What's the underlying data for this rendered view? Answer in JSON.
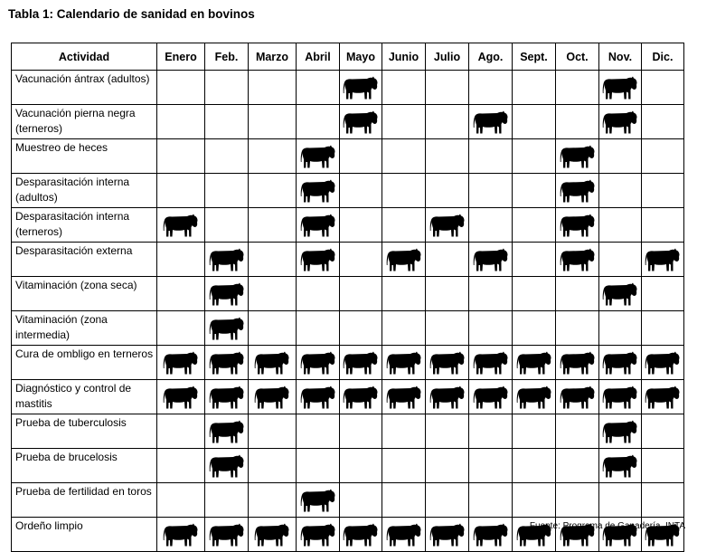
{
  "title": "Tabla 1: Calendario de sanidad en bovinos",
  "header": {
    "activity": "Actividad",
    "months": [
      "Enero",
      "Feb.",
      "Marzo",
      "Abril",
      "Mayo",
      "Junio",
      "Julio",
      "Ago.",
      "Sept.",
      "Oct.",
      "Nov.",
      "Dic."
    ]
  },
  "rows": [
    {
      "label": "Vacunación ántrax (adultos)",
      "months": [
        0,
        0,
        0,
        0,
        1,
        0,
        0,
        0,
        0,
        0,
        1,
        0
      ]
    },
    {
      "label": "Vacunación pierna negra (terneros)",
      "months": [
        0,
        0,
        0,
        0,
        1,
        0,
        0,
        1,
        0,
        0,
        1,
        0
      ]
    },
    {
      "label": "Muestreo de heces",
      "months": [
        0,
        0,
        0,
        1,
        0,
        0,
        0,
        0,
        0,
        1,
        0,
        0
      ]
    },
    {
      "label": "Desparasitación interna (adultos)",
      "months": [
        0,
        0,
        0,
        1,
        0,
        0,
        0,
        0,
        0,
        1,
        0,
        0
      ]
    },
    {
      "label": "Desparasitación interna (terneros)",
      "months": [
        1,
        0,
        0,
        1,
        0,
        0,
        1,
        0,
        0,
        1,
        0,
        0
      ]
    },
    {
      "label": "Desparasitación externa",
      "months": [
        0,
        1,
        0,
        1,
        0,
        1,
        0,
        1,
        0,
        1,
        0,
        1
      ]
    },
    {
      "label": "Vitaminación (zona seca)",
      "months": [
        0,
        1,
        0,
        0,
        0,
        0,
        0,
        0,
        0,
        0,
        1,
        0
      ]
    },
    {
      "label": "Vitaminación (zona intermedia)",
      "months": [
        0,
        1,
        0,
        0,
        0,
        0,
        0,
        0,
        0,
        0,
        0,
        0
      ]
    },
    {
      "label": "Cura de ombligo en terneros",
      "months": [
        1,
        1,
        1,
        1,
        1,
        1,
        1,
        1,
        1,
        1,
        1,
        1
      ]
    },
    {
      "label": "Diagnóstico y control de mastitis",
      "months": [
        1,
        1,
        1,
        1,
        1,
        1,
        1,
        1,
        1,
        1,
        1,
        1
      ]
    },
    {
      "label": "Prueba de tuberculosis",
      "months": [
        0,
        1,
        0,
        0,
        0,
        0,
        0,
        0,
        0,
        0,
        1,
        0
      ]
    },
    {
      "label": "Prueba de brucelosis",
      "months": [
        0,
        1,
        0,
        0,
        0,
        0,
        0,
        0,
        0,
        0,
        1,
        0
      ]
    },
    {
      "label": "Prueba de fertilidad en toros",
      "months": [
        0,
        0,
        0,
        1,
        0,
        0,
        0,
        0,
        0,
        0,
        0,
        0
      ]
    },
    {
      "label": "Ordeño limpio",
      "months": [
        1,
        1,
        1,
        1,
        1,
        1,
        1,
        1,
        1,
        1,
        1,
        1
      ]
    }
  ],
  "cell_icon": "cow-icon",
  "source": "Fuente: Programa de Ganadería. INTA"
}
